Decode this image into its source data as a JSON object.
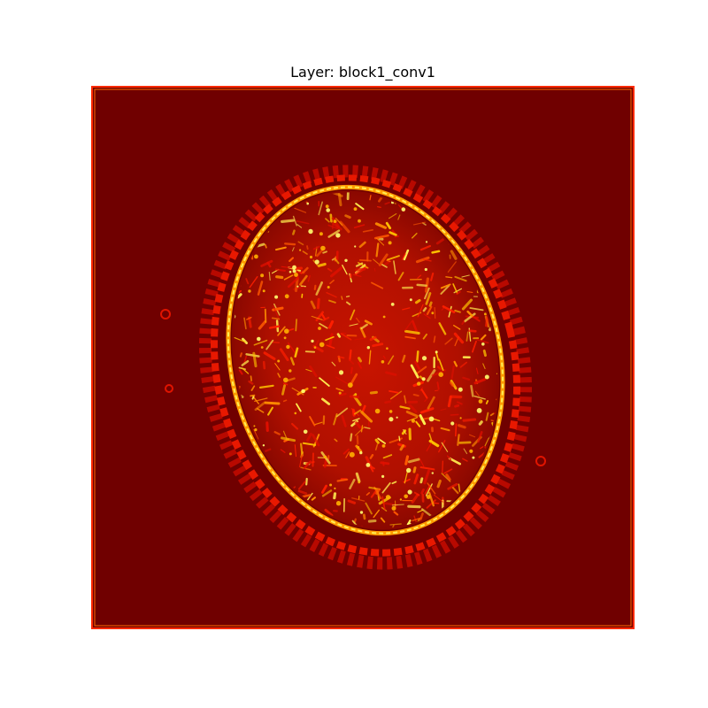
{
  "chart_data": {
    "type": "heatmap",
    "title": "Layer: block1_conv1",
    "colormap": "hot",
    "colorbar": false,
    "axes_visible": false,
    "colors": {
      "background": "#700000",
      "low": "#8b0000",
      "mid": "#ff1a00",
      "high": "#ffaa00",
      "peak": "#ffff66",
      "frame": "#ff2a00"
    }
  }
}
